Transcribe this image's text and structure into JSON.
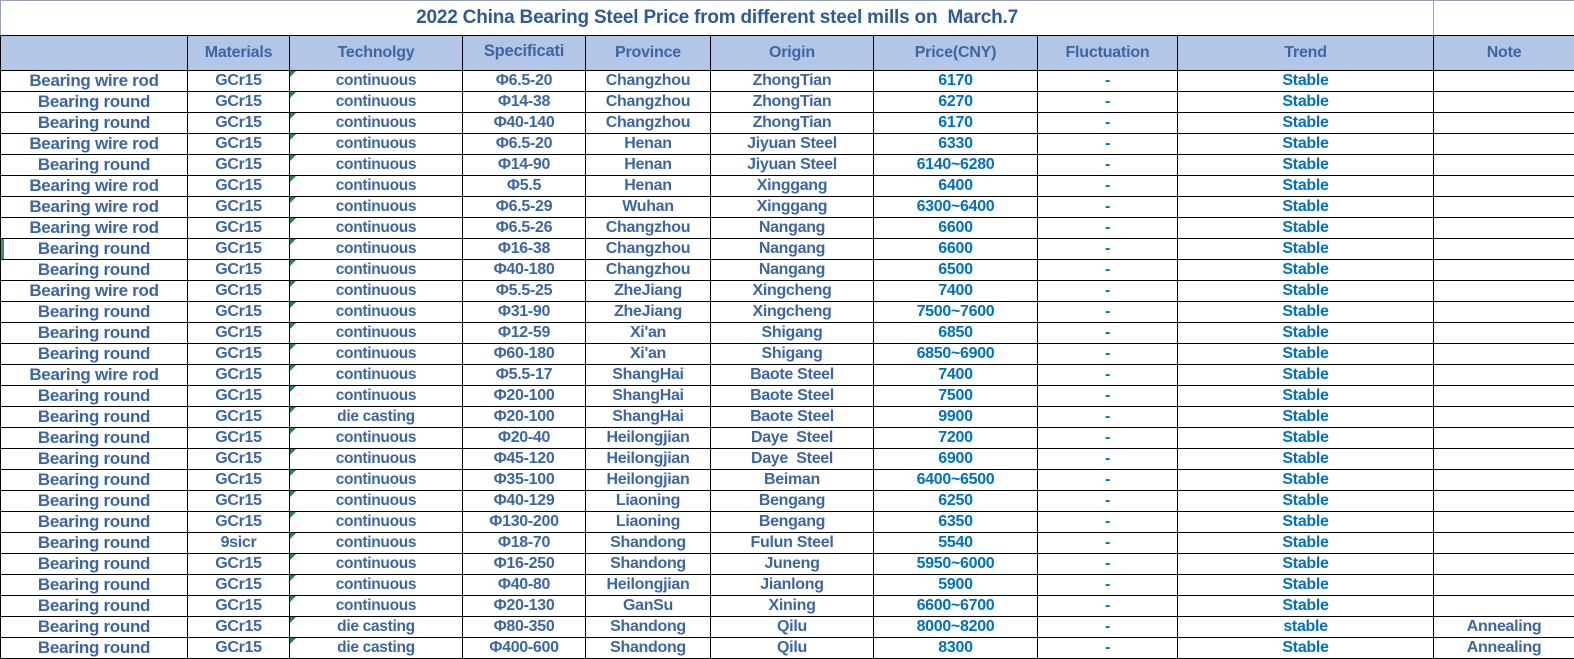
{
  "title": "2022 China Bearing Steel Price from different steel mills on  March.7",
  "colors": {
    "header_background": "#b4c6e7",
    "steel_blue_text": "#3b66a3",
    "bright_blue_text": "#0070c0",
    "title_text": "#2e5b97",
    "grid_line": "#000000",
    "error_indicator_green": "#1f8a44"
  },
  "table": {
    "columns": [
      "",
      "Materials",
      "Technolgy",
      "Specificati",
      "Province",
      "Origin",
      "Price(CNY)",
      "Fluctuation",
      "Trend",
      "Note"
    ],
    "rows": [
      {
        "product": "Bearing wire rod",
        "material": "GCr15",
        "technology": "continuous",
        "spec": "Φ6.5-20",
        "province": "Changzhou",
        "origin": "ZhongTian",
        "price": "6170",
        "fluctuation": "-",
        "trend": "Stable",
        "note": ""
      },
      {
        "product": "Bearing round",
        "material": "GCr15",
        "technology": "continuous",
        "spec": "Φ14-38",
        "province": "Changzhou",
        "origin": "ZhongTian",
        "price": "6270",
        "fluctuation": "-",
        "trend": "Stable",
        "note": ""
      },
      {
        "product": "Bearing round",
        "material": "GCr15",
        "technology": "continuous",
        "spec": "Φ40-140",
        "province": "Changzhou",
        "origin": "ZhongTian",
        "price": "6170",
        "fluctuation": "-",
        "trend": "Stable",
        "note": ""
      },
      {
        "product": "Bearing wire rod",
        "material": "GCr15",
        "technology": "continuous",
        "spec": "Φ6.5-20",
        "province": "Henan",
        "origin": "Jiyuan Steel",
        "price": "6330",
        "fluctuation": "-",
        "trend": "Stable",
        "note": ""
      },
      {
        "product": "Bearing round",
        "material": "GCr15",
        "technology": "continuous",
        "spec": "Φ14-90",
        "province": "Henan",
        "origin": "Jiyuan Steel",
        "price": "6140~6280",
        "fluctuation": "-",
        "trend": "Stable",
        "note": ""
      },
      {
        "product": "Bearing wire rod",
        "material": "GCr15",
        "technology": "continuous",
        "spec": "Φ5.5",
        "province": "Henan",
        "origin": "Xinggang",
        "price": "6400",
        "fluctuation": "-",
        "trend": "Stable",
        "note": ""
      },
      {
        "product": "Bearing wire rod",
        "material": "GCr15",
        "technology": "continuous",
        "spec": "Φ6.5-29",
        "province": "Wuhan",
        "origin": "Xinggang",
        "price": "6300~6400",
        "fluctuation": "-",
        "trend": "Stable",
        "note": ""
      },
      {
        "product": "Bearing wire rod",
        "material": "GCr15",
        "technology": "continuous",
        "spec": "Φ6.5-26",
        "province": "Changzhou",
        "origin": "Nangang",
        "price": "6600",
        "fluctuation": "-",
        "trend": "Stable",
        "note": ""
      },
      {
        "product": "Bearing round",
        "material": "GCr15",
        "technology": "continuous",
        "spec": "Φ16-38",
        "province": "Changzhou",
        "origin": "Nangang",
        "price": "6600",
        "fluctuation": "-",
        "trend": "Stable",
        "note": "",
        "left_marker": true
      },
      {
        "product": "Bearing round",
        "material": "GCr15",
        "technology": "continuous",
        "spec": "Φ40-180",
        "province": "Changzhou",
        "origin": "Nangang",
        "price": "6500",
        "fluctuation": "-",
        "trend": "Stable",
        "note": ""
      },
      {
        "product": "Bearing wire rod",
        "material": "GCr15",
        "technology": "continuous",
        "spec": "Φ5.5-25",
        "province": "ZheJiang",
        "origin": "Xingcheng",
        "price": "7400",
        "fluctuation": "-",
        "trend": "Stable",
        "note": ""
      },
      {
        "product": "Bearing round",
        "material": "GCr15",
        "technology": "continuous",
        "spec": "Φ31-90",
        "province": "ZheJiang",
        "origin": "Xingcheng",
        "price": "7500~7600",
        "fluctuation": "-",
        "trend": "Stable",
        "note": ""
      },
      {
        "product": "Bearing round",
        "material": "GCr15",
        "technology": "continuous",
        "spec": "Φ12-59",
        "province": "Xi'an",
        "origin": "Shigang",
        "price": "6850",
        "fluctuation": "-",
        "trend": "Stable",
        "note": ""
      },
      {
        "product": "Bearing round",
        "material": "GCr15",
        "technology": "continuous",
        "spec": "Φ60-180",
        "province": "Xi'an",
        "origin": "Shigang",
        "price": "6850~6900",
        "fluctuation": "-",
        "trend": "Stable",
        "note": ""
      },
      {
        "product": "Bearing wire rod",
        "material": "GCr15",
        "technology": "continuous",
        "spec": "Φ5.5-17",
        "province": "ShangHai",
        "origin": "Baote Steel",
        "price": "7400",
        "fluctuation": "-",
        "trend": "Stable",
        "note": ""
      },
      {
        "product": "Bearing round",
        "material": "GCr15",
        "technology": "continuous",
        "spec": "Φ20-100",
        "province": "ShangHai",
        "origin": "Baote Steel",
        "price": "7500",
        "fluctuation": "-",
        "trend": "Stable",
        "note": ""
      },
      {
        "product": "Bearing round",
        "material": "GCr15",
        "technology": "die casting",
        "spec": "Φ20-100",
        "province": "ShangHai",
        "origin": "Baote Steel",
        "price": "9900",
        "fluctuation": "-",
        "trend": "Stable",
        "note": ""
      },
      {
        "product": "Bearing round",
        "material": "GCr15",
        "technology": "continuous",
        "spec": "Φ20-40",
        "province": "Heilongjian",
        "origin": "Daye  Steel",
        "price": "7200",
        "fluctuation": "-",
        "trend": "Stable",
        "note": ""
      },
      {
        "product": "Bearing round",
        "material": "GCr15",
        "technology": "continuous",
        "spec": "Φ45-120",
        "province": "Heilongjian",
        "origin": "Daye  Steel",
        "price": "6900",
        "fluctuation": "-",
        "trend": "Stable",
        "note": ""
      },
      {
        "product": "Bearing round",
        "material": "GCr15",
        "technology": "continuous",
        "spec": "Φ35-100",
        "province": "Heilongjian",
        "origin": "Beiman",
        "price": "6400~6500",
        "fluctuation": "-",
        "trend": "Stable",
        "note": ""
      },
      {
        "product": "Bearing round",
        "material": "GCr15",
        "technology": "continuous",
        "spec": "Φ40-129",
        "province": "Liaoning",
        "origin": "Bengang",
        "price": "6250",
        "fluctuation": "-",
        "trend": "Stable",
        "note": ""
      },
      {
        "product": "Bearing round",
        "material": "GCr15",
        "technology": "continuous",
        "spec": "Φ130-200",
        "province": "Liaoning",
        "origin": "Bengang",
        "price": "6350",
        "fluctuation": "-",
        "trend": "Stable",
        "note": ""
      },
      {
        "product": "Bearing round",
        "material": "9sicr",
        "technology": "continuous",
        "spec": "Φ18-70",
        "province": "Shandong",
        "origin": "Fulun Steel",
        "price": "5540",
        "fluctuation": "-",
        "trend": "Stable",
        "note": ""
      },
      {
        "product": "Bearing round",
        "material": "GCr15",
        "technology": "continuous",
        "spec": "Φ16-250",
        "province": "Shandong",
        "origin": "Juneng",
        "price": "5950~6000",
        "fluctuation": "-",
        "trend": "Stable",
        "note": ""
      },
      {
        "product": "Bearing round",
        "material": "GCr15",
        "technology": "continuous",
        "spec": "Φ40-80",
        "province": "Heilongjian",
        "origin": "Jianlong",
        "price": "5900",
        "fluctuation": "-",
        "trend": "Stable",
        "note": ""
      },
      {
        "product": "Bearing round",
        "material": "GCr15",
        "technology": "continuous",
        "spec": "Φ20-130",
        "province": "GanSu",
        "origin": "Xining",
        "price": "6600~6700",
        "fluctuation": "-",
        "trend": "Stable",
        "note": ""
      },
      {
        "product": "Bearing round",
        "material": "GCr15",
        "technology": "die casting",
        "spec": "Φ80-350",
        "province": "Shandong",
        "origin": "Qilu",
        "price": "8000~8200",
        "fluctuation": "-",
        "trend": "stable",
        "note": "Annealing"
      },
      {
        "product": "Bearing round",
        "material": "GCr15",
        "technology": "die casting",
        "spec": "Φ400-600",
        "province": "Shandong",
        "origin": "Qilu",
        "price": "8300",
        "fluctuation": "-",
        "trend": "Stable",
        "note": "Annealing"
      }
    ]
  }
}
